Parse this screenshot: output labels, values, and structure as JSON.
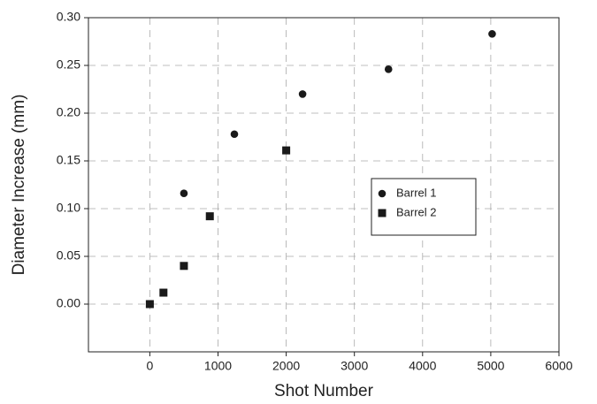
{
  "chart_data": {
    "type": "scatter",
    "xlabel": "Shot Number",
    "ylabel": "Diameter Increase (mm)",
    "xlim": [
      -900,
      6000
    ],
    "xticks": [
      0,
      1000,
      2000,
      3000,
      4000,
      5000,
      6000
    ],
    "ylim": [
      -0.05,
      0.3
    ],
    "yticks": [
      {
        "value": 0,
        "label": "0.00"
      },
      0.05,
      {
        "value": 0.1,
        "label": "0.10"
      },
      0.15,
      {
        "value": 0.2,
        "label": "0.20"
      },
      0.25,
      {
        "value": 0.3,
        "label": "0.30"
      }
    ],
    "grid": true,
    "legend": "right",
    "series": [
      {
        "name": "Barrel 1",
        "color": "#1a1a1a",
        "marker": "circle",
        "x": [
          0,
          500,
          1240,
          2240,
          3500,
          5020
        ],
        "values": [
          0,
          0.116,
          0.178,
          0.22,
          0.246,
          0.283
        ]
      },
      {
        "name": "Barrel 2",
        "color": "#1a1a1a",
        "marker": "square",
        "x": [
          0,
          200,
          500,
          880,
          2000
        ],
        "values": [
          0,
          0.012,
          0.04,
          0.092,
          0.161
        ]
      }
    ]
  }
}
